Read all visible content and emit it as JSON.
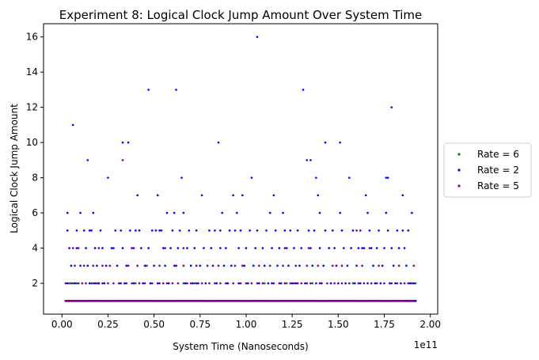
{
  "chart_data": {
    "type": "scatter",
    "title": "Experiment 8: Logical Clock Jump Amount Over System Time",
    "xlabel": "System Time (Nanoseconds)",
    "ylabel": "Logical Clock Jump Amount",
    "x_offset_label": "1e11",
    "x_scale_exponent": 11,
    "xlim": [
      -0.1,
      2.04
    ],
    "ylim": [
      0.25,
      16.75
    ],
    "x_ticks": [
      0.0,
      0.25,
      0.5,
      0.75,
      1.0,
      1.25,
      1.5,
      1.75,
      2.0
    ],
    "x_tick_labels": [
      "0.00",
      "0.25",
      "0.50",
      "0.75",
      "1.00",
      "1.25",
      "1.50",
      "1.75",
      "2.00"
    ],
    "y_ticks": [
      2,
      4,
      6,
      8,
      10,
      12,
      14,
      16
    ],
    "y_tick_labels": [
      "2",
      "4",
      "6",
      "8",
      "10",
      "12",
      "14",
      "16"
    ],
    "grid": false,
    "legend_position": "outside-right",
    "series": [
      {
        "name": "Rate = 6",
        "color": "#008000",
        "points": [
          [
            0.04,
            2
          ],
          [
            0.06,
            2
          ],
          [
            0.08,
            2
          ],
          [
            0.16,
            2
          ],
          [
            0.2,
            2
          ],
          [
            0.4,
            2
          ],
          [
            0.66,
            2
          ],
          [
            0.72,
            2
          ],
          [
            0.9,
            2
          ],
          [
            1.1,
            2
          ],
          [
            1.22,
            2
          ],
          [
            1.36,
            2
          ],
          [
            1.58,
            2
          ],
          [
            1.92,
            2
          ]
        ],
        "baseline": {
          "y": 1,
          "x_start": 0.02,
          "x_end": 1.92,
          "step": 0.004
        }
      },
      {
        "name": "Rate = 2",
        "color": "#0000ff",
        "points": [
          [
            1.06,
            16
          ],
          [
            0.47,
            13
          ],
          [
            0.62,
            13
          ],
          [
            1.31,
            13
          ],
          [
            1.79,
            12
          ],
          [
            0.06,
            11
          ],
          [
            0.33,
            10
          ],
          [
            0.36,
            10
          ],
          [
            0.85,
            10
          ],
          [
            1.43,
            10
          ],
          [
            1.51,
            10
          ],
          [
            0.14,
            9
          ],
          [
            1.33,
            9
          ],
          [
            1.35,
            9
          ],
          [
            0.25,
            8
          ],
          [
            0.65,
            8
          ],
          [
            1.03,
            8
          ],
          [
            1.38,
            8
          ],
          [
            1.56,
            8
          ],
          [
            1.76,
            8
          ],
          [
            1.77,
            8
          ],
          [
            0.41,
            7
          ],
          [
            0.52,
            7
          ],
          [
            0.76,
            7
          ],
          [
            0.93,
            7
          ],
          [
            0.98,
            7
          ],
          [
            1.15,
            7
          ],
          [
            1.39,
            7
          ],
          [
            1.65,
            7
          ],
          [
            1.85,
            7
          ],
          [
            0.03,
            6
          ],
          [
            0.1,
            6
          ],
          [
            0.17,
            6
          ],
          [
            0.57,
            6
          ],
          [
            0.61,
            6
          ],
          [
            0.66,
            6
          ],
          [
            0.87,
            6
          ],
          [
            0.95,
            6
          ],
          [
            1.13,
            6
          ],
          [
            1.2,
            6
          ],
          [
            1.4,
            6
          ],
          [
            1.51,
            6
          ],
          [
            1.66,
            6
          ],
          [
            1.76,
            6
          ],
          [
            1.9,
            6
          ],
          [
            0.03,
            5
          ],
          [
            0.08,
            5
          ],
          [
            0.12,
            5
          ],
          [
            0.15,
            5
          ],
          [
            0.16,
            5
          ],
          [
            0.21,
            5
          ],
          [
            0.29,
            5
          ],
          [
            0.32,
            5
          ],
          [
            0.37,
            5
          ],
          [
            0.4,
            5
          ],
          [
            0.42,
            5
          ],
          [
            0.49,
            5
          ],
          [
            0.51,
            5
          ],
          [
            0.53,
            5
          ],
          [
            0.54,
            5
          ],
          [
            0.6,
            5
          ],
          [
            0.64,
            5
          ],
          [
            0.69,
            5
          ],
          [
            0.73,
            5
          ],
          [
            0.8,
            5
          ],
          [
            0.83,
            5
          ],
          [
            0.86,
            5
          ],
          [
            0.91,
            5
          ],
          [
            0.94,
            5
          ],
          [
            0.97,
            5
          ],
          [
            1.02,
            5
          ],
          [
            1.06,
            5
          ],
          [
            1.11,
            5
          ],
          [
            1.16,
            5
          ],
          [
            1.21,
            5
          ],
          [
            1.24,
            5
          ],
          [
            1.28,
            5
          ],
          [
            1.34,
            5
          ],
          [
            1.37,
            5
          ],
          [
            1.43,
            5
          ],
          [
            1.47,
            5
          ],
          [
            1.52,
            5
          ],
          [
            1.58,
            5
          ],
          [
            1.62,
            5
          ],
          [
            1.67,
            5
          ],
          [
            1.72,
            5
          ],
          [
            1.77,
            5
          ],
          [
            1.82,
            5
          ],
          [
            1.85,
            5
          ],
          [
            1.88,
            5
          ],
          [
            0.04,
            4
          ],
          [
            0.08,
            4
          ],
          [
            0.13,
            4
          ],
          [
            0.18,
            4
          ],
          [
            0.22,
            4
          ],
          [
            0.27,
            4
          ],
          [
            0.28,
            4
          ],
          [
            0.33,
            4
          ],
          [
            0.38,
            4
          ],
          [
            0.43,
            4
          ],
          [
            0.47,
            4
          ],
          [
            0.55,
            4
          ],
          [
            0.59,
            4
          ],
          [
            0.63,
            4
          ],
          [
            0.68,
            4
          ],
          [
            0.72,
            4
          ],
          [
            0.77,
            4
          ],
          [
            0.81,
            4
          ],
          [
            0.86,
            4
          ],
          [
            0.89,
            4
          ],
          [
            0.96,
            4
          ],
          [
            1.0,
            4
          ],
          [
            1.05,
            4
          ],
          [
            1.09,
            4
          ],
          [
            1.14,
            4
          ],
          [
            1.18,
            4
          ],
          [
            1.22,
            4
          ],
          [
            1.26,
            4
          ],
          [
            1.3,
            4
          ],
          [
            1.35,
            4
          ],
          [
            1.4,
            4
          ],
          [
            1.45,
            4
          ],
          [
            1.48,
            4
          ],
          [
            1.53,
            4
          ],
          [
            1.57,
            4
          ],
          [
            1.61,
            4
          ],
          [
            1.63,
            4
          ],
          [
            1.64,
            4
          ],
          [
            1.68,
            4
          ],
          [
            1.71,
            4
          ],
          [
            1.75,
            4
          ],
          [
            1.79,
            4
          ],
          [
            1.83,
            4
          ],
          [
            1.86,
            4
          ],
          [
            0.05,
            3
          ],
          [
            0.1,
            3
          ],
          [
            0.14,
            3
          ],
          [
            0.19,
            3
          ],
          [
            0.24,
            3
          ],
          [
            0.3,
            3
          ],
          [
            0.35,
            3
          ],
          [
            0.45,
            3
          ],
          [
            0.5,
            3
          ],
          [
            0.56,
            3
          ],
          [
            0.62,
            3
          ],
          [
            0.7,
            3
          ],
          [
            0.75,
            3
          ],
          [
            0.82,
            3
          ],
          [
            0.88,
            3
          ],
          [
            0.92,
            3
          ],
          [
            0.99,
            3
          ],
          [
            1.04,
            3
          ],
          [
            1.1,
            3
          ],
          [
            1.17,
            3
          ],
          [
            1.23,
            3
          ],
          [
            1.29,
            3
          ],
          [
            1.36,
            3
          ],
          [
            1.42,
            3
          ],
          [
            1.49,
            3
          ],
          [
            1.55,
            3
          ],
          [
            1.6,
            3
          ],
          [
            1.69,
            3
          ],
          [
            1.74,
            3
          ],
          [
            1.8,
            3
          ],
          [
            1.87,
            3
          ],
          [
            0.03,
            2
          ],
          [
            0.07,
            2
          ],
          [
            0.15,
            2
          ],
          [
            0.18,
            2
          ],
          [
            0.2,
            2
          ],
          [
            0.23,
            2
          ],
          [
            0.31,
            2
          ],
          [
            0.34,
            2
          ],
          [
            0.39,
            2
          ],
          [
            0.44,
            2
          ],
          [
            0.48,
            2
          ],
          [
            0.52,
            2
          ],
          [
            0.58,
            2
          ],
          [
            0.67,
            2
          ],
          [
            0.71,
            2
          ],
          [
            0.74,
            2
          ],
          [
            0.78,
            2
          ],
          [
            0.84,
            2
          ],
          [
            0.9,
            2
          ],
          [
            0.96,
            2
          ],
          [
            1.01,
            2
          ],
          [
            1.07,
            2
          ],
          [
            1.12,
            2
          ],
          [
            1.14,
            2
          ],
          [
            1.19,
            2
          ],
          [
            1.25,
            2
          ],
          [
            1.27,
            2
          ],
          [
            1.32,
            2
          ],
          [
            1.38,
            2
          ],
          [
            1.41,
            2
          ],
          [
            1.46,
            2
          ],
          [
            1.5,
            2
          ],
          [
            1.54,
            2
          ],
          [
            1.59,
            2
          ],
          [
            1.62,
            2
          ],
          [
            1.66,
            2
          ],
          [
            1.7,
            2
          ],
          [
            1.73,
            2
          ],
          [
            1.78,
            2
          ],
          [
            1.81,
            2
          ],
          [
            1.84,
            2
          ],
          [
            1.89,
            2
          ],
          [
            1.91,
            2
          ],
          [
            1.92,
            1
          ]
        ],
        "baseline": {
          "y": 1,
          "x_start": 0.02,
          "x_end": 1.92,
          "step": 0.004
        }
      },
      {
        "name": "Rate = 5",
        "color": "#800080",
        "points": [
          [
            0.33,
            9
          ],
          [
            0.06,
            4
          ],
          [
            0.09,
            4
          ],
          [
            0.2,
            4
          ],
          [
            0.39,
            4
          ],
          [
            0.56,
            4
          ],
          [
            0.66,
            4
          ],
          [
            1.21,
            4
          ],
          [
            1.34,
            4
          ],
          [
            1.67,
            4
          ],
          [
            1.6,
            5
          ],
          [
            0.07,
            3
          ],
          [
            0.12,
            3
          ],
          [
            0.17,
            3
          ],
          [
            0.22,
            3
          ],
          [
            0.26,
            3
          ],
          [
            0.36,
            3
          ],
          [
            0.41,
            3
          ],
          [
            0.46,
            3
          ],
          [
            0.53,
            3
          ],
          [
            0.61,
            3
          ],
          [
            0.66,
            3
          ],
          [
            0.73,
            3
          ],
          [
            0.79,
            3
          ],
          [
            0.85,
            3
          ],
          [
            0.94,
            3
          ],
          [
            0.98,
            3
          ],
          [
            1.07,
            3
          ],
          [
            1.13,
            3
          ],
          [
            1.2,
            3
          ],
          [
            1.27,
            3
          ],
          [
            1.33,
            3
          ],
          [
            1.39,
            3
          ],
          [
            1.47,
            3
          ],
          [
            1.52,
            3
          ],
          [
            1.63,
            3
          ],
          [
            1.72,
            3
          ],
          [
            1.83,
            3
          ],
          [
            1.91,
            3
          ],
          [
            0.02,
            2
          ],
          [
            0.05,
            2
          ],
          [
            0.09,
            2
          ],
          [
            0.11,
            2
          ],
          [
            0.13,
            2
          ],
          [
            0.17,
            2
          ],
          [
            0.19,
            2
          ],
          [
            0.22,
            2
          ],
          [
            0.25,
            2
          ],
          [
            0.28,
            2
          ],
          [
            0.32,
            2
          ],
          [
            0.35,
            2
          ],
          [
            0.38,
            2
          ],
          [
            0.42,
            2
          ],
          [
            0.45,
            2
          ],
          [
            0.49,
            2
          ],
          [
            0.53,
            2
          ],
          [
            0.55,
            2
          ],
          [
            0.57,
            2
          ],
          [
            0.6,
            2
          ],
          [
            0.63,
            2
          ],
          [
            0.68,
            2
          ],
          [
            0.7,
            2
          ],
          [
            0.73,
            2
          ],
          [
            0.76,
            2
          ],
          [
            0.8,
            2
          ],
          [
            0.83,
            2
          ],
          [
            0.86,
            2
          ],
          [
            0.89,
            2
          ],
          [
            0.93,
            2
          ],
          [
            0.97,
            2
          ],
          [
            1.0,
            2
          ],
          [
            1.03,
            2
          ],
          [
            1.06,
            2
          ],
          [
            1.09,
            2
          ],
          [
            1.15,
            2
          ],
          [
            1.18,
            2
          ],
          [
            1.21,
            2
          ],
          [
            1.24,
            2
          ],
          [
            1.26,
            2
          ],
          [
            1.28,
            2
          ],
          [
            1.3,
            2
          ],
          [
            1.33,
            2
          ],
          [
            1.35,
            2
          ],
          [
            1.4,
            2
          ],
          [
            1.44,
            2
          ],
          [
            1.48,
            2
          ],
          [
            1.52,
            2
          ],
          [
            1.56,
            2
          ],
          [
            1.61,
            2
          ],
          [
            1.64,
            2
          ],
          [
            1.68,
            2
          ],
          [
            1.71,
            2
          ],
          [
            1.75,
            2
          ],
          [
            1.79,
            2
          ],
          [
            1.82,
            2
          ],
          [
            1.86,
            2
          ],
          [
            1.88,
            2
          ],
          [
            1.9,
            2
          ]
        ],
        "baseline": {
          "y": 1,
          "x_start": 0.02,
          "x_end": 1.91,
          "step": 0.006
        }
      }
    ]
  }
}
